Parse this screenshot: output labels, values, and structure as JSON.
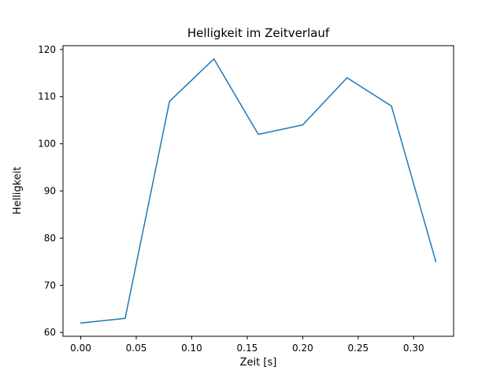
{
  "chart_data": {
    "type": "line",
    "title": "Helligkeit im Zeitverlauf",
    "xlabel": "Zeit [s]",
    "ylabel": "Helligkeit",
    "x": [
      0.0,
      0.04,
      0.08,
      0.12,
      0.16,
      0.2,
      0.24,
      0.28,
      0.32
    ],
    "y": [
      62,
      63,
      109,
      118,
      102,
      104,
      114,
      108,
      75
    ],
    "x_ticks": [
      0.0,
      0.05,
      0.1,
      0.15,
      0.2,
      0.25,
      0.3
    ],
    "x_tick_labels": [
      "0.00",
      "0.05",
      "0.10",
      "0.15",
      "0.20",
      "0.25",
      "0.30"
    ],
    "y_ticks": [
      60,
      70,
      80,
      90,
      100,
      110,
      120
    ],
    "y_tick_labels": [
      "60",
      "70",
      "80",
      "90",
      "100",
      "110",
      "120"
    ],
    "xlim": [
      -0.016,
      0.336
    ],
    "ylim": [
      59.2,
      120.8
    ],
    "line_color": "#1f77b4",
    "line_width": 1.5,
    "grid": false,
    "legend": "none",
    "background": "#ffffff"
  }
}
